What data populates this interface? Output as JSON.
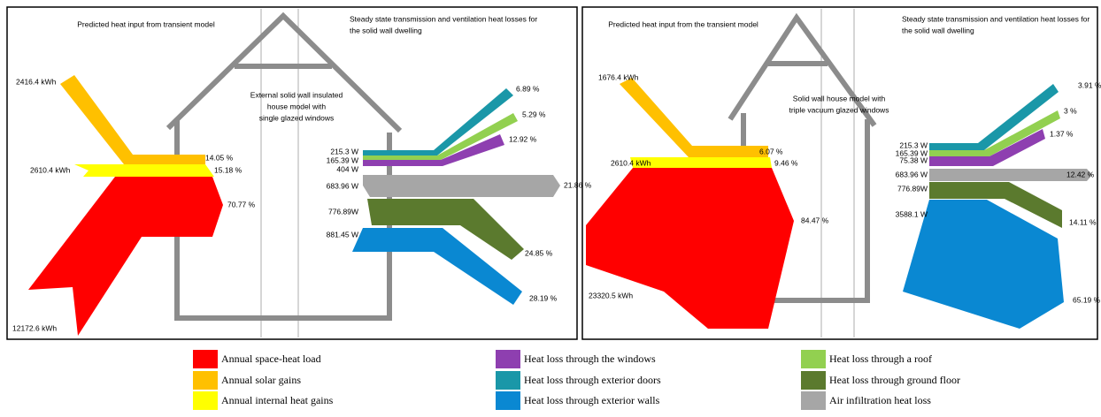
{
  "panels": [
    {
      "left_title": "Predicted heat input from transient model",
      "right_title": [
        "Steady state transmission and ventilation heat losses for",
        "the solid wall dwelling"
      ],
      "house_label": [
        "External solid wall insulated",
        "house model with",
        "single glazed windows"
      ],
      "inputs": [
        "2416.4 kWh",
        "2610.4 kWh",
        "12172.6 kWh"
      ],
      "input_percents": [
        "14.05 %",
        "15.18 %",
        "70.77 %"
      ],
      "loss_watts": [
        "215.3 W",
        "165.39 W",
        "404 W",
        "683.96 W",
        "776.89W",
        "881.45 W"
      ],
      "loss_percents": [
        "6.89 %",
        "5.29 %",
        "12.92 %",
        "21.86 %",
        "24.85 %",
        "28.19 %"
      ]
    },
    {
      "left_title": "Predicted heat input from the transient model",
      "right_title": [
        "Steady state transmission and ventilation heat losses for",
        "the solid wall dwelling"
      ],
      "house_label": [
        "Solid wall house model with",
        "triple vacuum glazed windows"
      ],
      "inputs": [
        "1676.4 kWh",
        "2610.4 kWh",
        "23320.5 kWh"
      ],
      "input_percents": [
        "6.07 %",
        "9.46 %",
        "84.47 %"
      ],
      "loss_watts": [
        "215.3 W",
        "165.39 W",
        "75.38 W",
        "683.96 W",
        "776.89W",
        "3588.1 W"
      ],
      "loss_percents": [
        "3.91 %",
        "3 %",
        "1.37 %",
        "12.42 %",
        "14.11 %",
        "65.19 %"
      ]
    }
  ],
  "legend": [
    {
      "label": "Annual space-heat load",
      "color": "#ff0000"
    },
    {
      "label": "Annual solar gains",
      "color": "#ffc000"
    },
    {
      "label": "Annual internal heat gains",
      "color": "#ffff00"
    },
    {
      "label": "Heat loss through the windows",
      "color": "#8e3fb0"
    },
    {
      "label": "Heat loss through exterior doors",
      "color": "#1a97a8"
    },
    {
      "label": "Heat loss through exterior walls",
      "color": "#0a88d2"
    },
    {
      "label": "Heat loss through a roof",
      "color": "#92d050"
    },
    {
      "label": "Heat loss through ground floor",
      "color": "#5b7a2e"
    },
    {
      "label": "Air infiltration heat loss",
      "color": "#a6a6a6"
    }
  ]
}
